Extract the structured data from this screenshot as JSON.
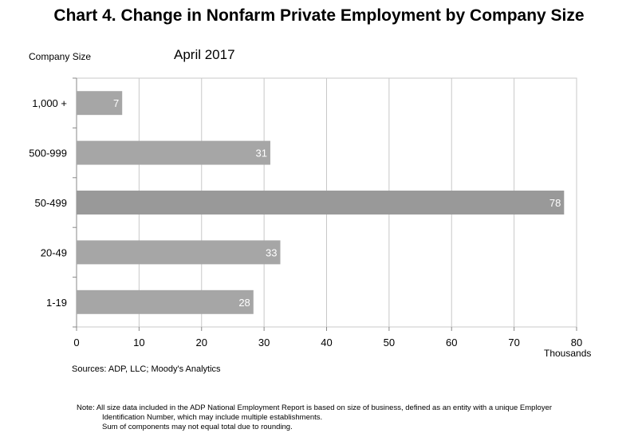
{
  "title": "Chart 4. Change in Nonfarm Private Employment by Company Size",
  "subtitle": "April 2017",
  "y_axis_title": "Company Size",
  "x_unit": "Thousands",
  "sources": "Sources: ADP, LLC; Moody's Analytics",
  "note": {
    "line1": "Note:  All size data included in the ADP National Employment Report is based on size of business, defined as an entity with a unique Employer",
    "line2": "Identification Number, which may include multiple establishments.",
    "line3": "Sum of components may not equal total due to rounding."
  },
  "colors": {
    "bar": "#a6a6a6",
    "bar_highlight": "#999999",
    "grid": "#c8c8c8",
    "axis": "#888888",
    "data_label": "#ffffff"
  },
  "chart_data": {
    "type": "bar",
    "orientation": "horizontal",
    "categories": [
      "1,000 +",
      "500-999",
      "50-499",
      "20-49",
      "1-19"
    ],
    "values": [
      7.3,
      31,
      78,
      32.6,
      28.3
    ],
    "data_labels": [
      "7",
      "31",
      "78",
      "33",
      "28"
    ],
    "xlim": [
      0,
      80
    ],
    "x_ticks": [
      0,
      10,
      20,
      30,
      40,
      50,
      60,
      70,
      80
    ],
    "grid": true,
    "ylabel": "Company Size",
    "xlabel": "Thousands"
  }
}
